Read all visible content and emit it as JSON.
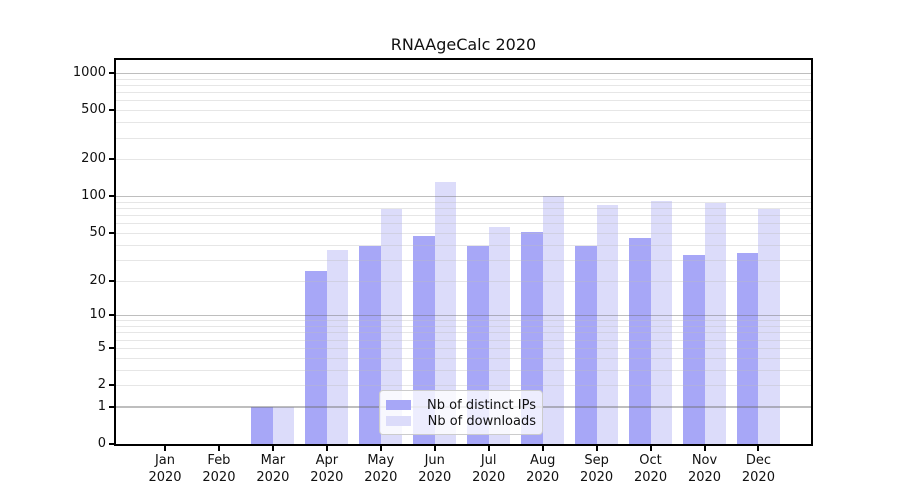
{
  "window": {
    "title": "RNAAgeCalc 2020"
  },
  "chart_data": {
    "type": "bar",
    "title": "RNAAgeCalc 2020",
    "xlabel": "",
    "ylabel": "",
    "categories": [
      "Jan 2020",
      "Feb 2020",
      "Mar 2020",
      "Apr 2020",
      "May 2020",
      "Jun 2020",
      "Jul 2020",
      "Aug 2020",
      "Sep 2020",
      "Oct 2020",
      "Nov 2020",
      "Dec 2020"
    ],
    "series": [
      {
        "name": "Nb of distinct IPs",
        "color": "#a7a7f7",
        "values": [
          0,
          0,
          1,
          24,
          39,
          47,
          39,
          51,
          39,
          45,
          33,
          34
        ]
      },
      {
        "name": "Nb of downloads",
        "color": "#dcdcfa",
        "values": [
          0,
          0,
          1,
          36,
          79,
          130,
          56,
          100,
          85,
          91,
          88,
          79
        ]
      }
    ],
    "y_scale": "log1p",
    "y_ticks": [
      0,
      1,
      2,
      5,
      10,
      20,
      50,
      100,
      200,
      500,
      1000
    ],
    "y_minor_gridlines": [
      2,
      3,
      4,
      5,
      6,
      7,
      8,
      9,
      20,
      30,
      40,
      50,
      60,
      70,
      80,
      90,
      200,
      300,
      400,
      500,
      600,
      700,
      800,
      900
    ],
    "y_major_gridlines": [
      1,
      10,
      100,
      1000
    ],
    "ylim": [
      0,
      1090
    ],
    "grid": true,
    "legend_position": "inside lower center",
    "colors": {
      "axis": "#000000",
      "grid_major": "#bdbdbd",
      "grid_minor": "#e6e6e6",
      "legend_border": "#cccccc",
      "legend_background": "#ffffff",
      "text": "#111111"
    }
  }
}
